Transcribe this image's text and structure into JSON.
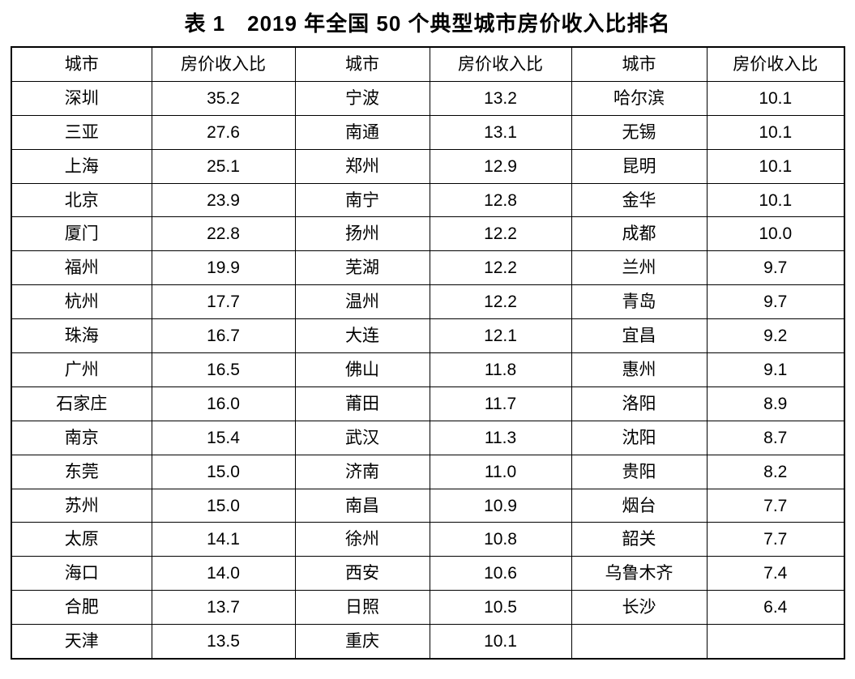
{
  "title": "表 1　2019 年全国 50 个典型城市房价收入比排名",
  "table": {
    "col_headers": [
      "城市",
      "房价收入比"
    ],
    "groups": [
      {
        "rows": [
          [
            "深圳",
            "35.2"
          ],
          [
            "三亚",
            "27.6"
          ],
          [
            "上海",
            "25.1"
          ],
          [
            "北京",
            "23.9"
          ],
          [
            "厦门",
            "22.8"
          ],
          [
            "福州",
            "19.9"
          ],
          [
            "杭州",
            "17.7"
          ],
          [
            "珠海",
            "16.7"
          ],
          [
            "广州",
            "16.5"
          ],
          [
            "石家庄",
            "16.0"
          ],
          [
            "南京",
            "15.4"
          ],
          [
            "东莞",
            "15.0"
          ],
          [
            "苏州",
            "15.0"
          ],
          [
            "太原",
            "14.1"
          ],
          [
            "海口",
            "14.0"
          ],
          [
            "合肥",
            "13.7"
          ],
          [
            "天津",
            "13.5"
          ]
        ]
      },
      {
        "rows": [
          [
            "宁波",
            "13.2"
          ],
          [
            "南通",
            "13.1"
          ],
          [
            "郑州",
            "12.9"
          ],
          [
            "南宁",
            "12.8"
          ],
          [
            "扬州",
            "12.2"
          ],
          [
            "芜湖",
            "12.2"
          ],
          [
            "温州",
            "12.2"
          ],
          [
            "大连",
            "12.1"
          ],
          [
            "佛山",
            "11.8"
          ],
          [
            "莆田",
            "11.7"
          ],
          [
            "武汉",
            "11.3"
          ],
          [
            "济南",
            "11.0"
          ],
          [
            "南昌",
            "10.9"
          ],
          [
            "徐州",
            "10.8"
          ],
          [
            "西安",
            "10.6"
          ],
          [
            "日照",
            "10.5"
          ],
          [
            "重庆",
            "10.1"
          ]
        ]
      },
      {
        "rows": [
          [
            "哈尔滨",
            "10.1"
          ],
          [
            "无锡",
            "10.1"
          ],
          [
            "昆明",
            "10.1"
          ],
          [
            "金华",
            "10.1"
          ],
          [
            "成都",
            "10.0"
          ],
          [
            "兰州",
            "9.7"
          ],
          [
            "青岛",
            "9.7"
          ],
          [
            "宜昌",
            "9.2"
          ],
          [
            "惠州",
            "9.1"
          ],
          [
            "洛阳",
            "8.9"
          ],
          [
            "沈阳",
            "8.7"
          ],
          [
            "贵阳",
            "8.2"
          ],
          [
            "烟台",
            "7.7"
          ],
          [
            "韶关",
            "7.7"
          ],
          [
            "乌鲁木齐",
            "7.4"
          ],
          [
            "长沙",
            "6.4"
          ],
          [
            "",
            ""
          ]
        ]
      }
    ],
    "colors": {
      "border": "#000000",
      "text": "#000000",
      "background": "#ffffff"
    }
  }
}
